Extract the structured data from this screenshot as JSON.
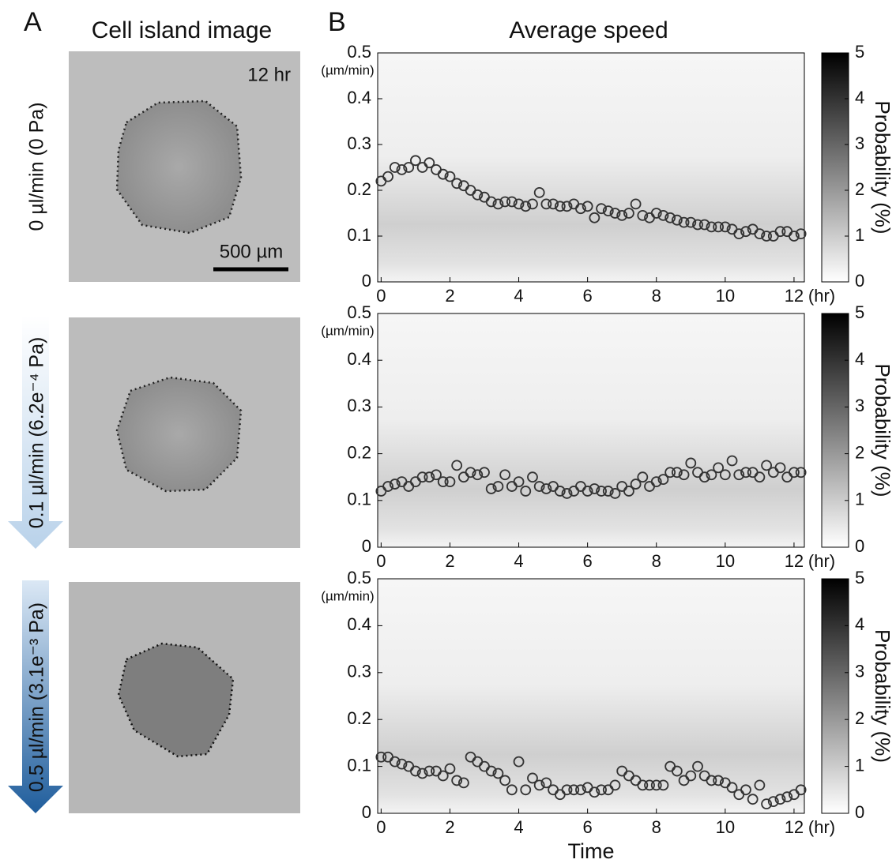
{
  "labels": {
    "panel_a": "A",
    "panel_a_title": "Cell island image",
    "panel_b": "B",
    "panel_b_title": "Average speed",
    "time_stamp": "12 hr",
    "scale_bar": "500 µm",
    "rows": [
      "0 µl/min (0 Pa)",
      "0.1 µl/min (6.2e⁻⁴ Pa)",
      "0.5 µl/min (3.1e⁻³ Pa)"
    ]
  },
  "chart_data": [
    {
      "type": "scatter",
      "y_unit": "(µm/min)",
      "x_unit": "(hr)",
      "x": [
        0,
        0.2,
        0.4,
        0.6,
        0.8,
        1,
        1.2,
        1.4,
        1.6,
        1.8,
        2,
        2.2,
        2.4,
        2.6,
        2.8,
        3,
        3.2,
        3.4,
        3.6,
        3.8,
        4,
        4.2,
        4.4,
        4.6,
        4.8,
        5,
        5.2,
        5.4,
        5.6,
        5.8,
        6,
        6.2,
        6.4,
        6.6,
        6.8,
        7,
        7.2,
        7.4,
        7.6,
        7.8,
        8,
        8.2,
        8.4,
        8.6,
        8.8,
        9,
        9.2,
        9.4,
        9.6,
        9.8,
        10,
        10.2,
        10.4,
        10.6,
        10.8,
        11,
        11.2,
        11.4,
        11.6,
        11.8,
        12,
        12.2
      ],
      "values": [
        0.22,
        0.23,
        0.25,
        0.245,
        0.25,
        0.265,
        0.25,
        0.26,
        0.245,
        0.235,
        0.23,
        0.215,
        0.21,
        0.2,
        0.19,
        0.185,
        0.175,
        0.17,
        0.175,
        0.175,
        0.17,
        0.165,
        0.17,
        0.195,
        0.17,
        0.17,
        0.165,
        0.165,
        0.17,
        0.16,
        0.165,
        0.14,
        0.16,
        0.155,
        0.15,
        0.145,
        0.15,
        0.17,
        0.145,
        0.14,
        0.15,
        0.145,
        0.14,
        0.135,
        0.13,
        0.13,
        0.125,
        0.125,
        0.12,
        0.12,
        0.12,
        0.115,
        0.105,
        0.11,
        0.115,
        0.105,
        0.1,
        0.1,
        0.11,
        0.11,
        0.1,
        0.105
      ],
      "xlim": [
        -0.1,
        12.3
      ],
      "xticks": [
        0,
        2,
        4,
        6,
        8,
        10,
        12
      ],
      "ylim": [
        0,
        0.5
      ],
      "yticks": [
        0,
        0.1,
        0.2,
        0.3,
        0.4,
        0.5
      ],
      "colorbar": {
        "label": "Probability (%)",
        "lim": [
          0,
          5
        ],
        "ticks": [
          0,
          1,
          2,
          3,
          4,
          5
        ]
      }
    },
    {
      "type": "scatter",
      "y_unit": "(µm/min)",
      "x_unit": "(hr)",
      "x": [
        0,
        0.2,
        0.4,
        0.6,
        0.8,
        1,
        1.2,
        1.4,
        1.6,
        1.8,
        2,
        2.2,
        2.4,
        2.6,
        2.8,
        3,
        3.2,
        3.4,
        3.6,
        3.8,
        4,
        4.2,
        4.4,
        4.6,
        4.8,
        5,
        5.2,
        5.4,
        5.6,
        5.8,
        6,
        6.2,
        6.4,
        6.6,
        6.8,
        7,
        7.2,
        7.4,
        7.6,
        7.8,
        8,
        8.2,
        8.4,
        8.6,
        8.8,
        9,
        9.2,
        9.4,
        9.6,
        9.8,
        10,
        10.2,
        10.4,
        10.6,
        10.8,
        11,
        11.2,
        11.4,
        11.6,
        11.8,
        12,
        12.2
      ],
      "values": [
        0.12,
        0.13,
        0.135,
        0.14,
        0.13,
        0.14,
        0.15,
        0.15,
        0.155,
        0.14,
        0.14,
        0.175,
        0.15,
        0.16,
        0.155,
        0.16,
        0.125,
        0.13,
        0.155,
        0.13,
        0.14,
        0.12,
        0.15,
        0.13,
        0.125,
        0.13,
        0.12,
        0.115,
        0.12,
        0.13,
        0.12,
        0.125,
        0.12,
        0.12,
        0.115,
        0.13,
        0.12,
        0.135,
        0.15,
        0.13,
        0.14,
        0.145,
        0.16,
        0.16,
        0.155,
        0.18,
        0.16,
        0.15,
        0.155,
        0.17,
        0.155,
        0.185,
        0.155,
        0.16,
        0.16,
        0.15,
        0.175,
        0.16,
        0.17,
        0.15,
        0.16,
        0.16
      ],
      "xlim": [
        -0.1,
        12.3
      ],
      "xticks": [
        0,
        2,
        4,
        6,
        8,
        10,
        12
      ],
      "ylim": [
        0,
        0.5
      ],
      "yticks": [
        0,
        0.1,
        0.2,
        0.3,
        0.4,
        0.5
      ],
      "colorbar": {
        "label": "Probability (%)",
        "lim": [
          0,
          5
        ],
        "ticks": [
          0,
          1,
          2,
          3,
          4,
          5
        ]
      }
    },
    {
      "type": "scatter",
      "y_unit": "(µm/min)",
      "x_unit": "(hr)",
      "x_label": "Time",
      "x": [
        0,
        0.2,
        0.4,
        0.6,
        0.8,
        1,
        1.2,
        1.4,
        1.6,
        1.8,
        2,
        2.2,
        2.4,
        2.6,
        2.8,
        3,
        3.2,
        3.4,
        3.6,
        3.8,
        4,
        4.2,
        4.4,
        4.6,
        4.8,
        5,
        5.2,
        5.4,
        5.6,
        5.8,
        6,
        6.2,
        6.4,
        6.6,
        6.8,
        7,
        7.2,
        7.4,
        7.6,
        7.8,
        8,
        8.2,
        8.4,
        8.6,
        8.8,
        9,
        9.2,
        9.4,
        9.6,
        9.8,
        10,
        10.2,
        10.4,
        10.6,
        10.8,
        11,
        11.2,
        11.4,
        11.6,
        11.8,
        12,
        12.2
      ],
      "values": [
        0.12,
        0.12,
        0.11,
        0.105,
        0.1,
        0.09,
        0.085,
        0.09,
        0.09,
        0.08,
        0.095,
        0.07,
        0.065,
        0.12,
        0.11,
        0.1,
        0.09,
        0.085,
        0.07,
        0.05,
        0.11,
        0.05,
        0.075,
        0.06,
        0.065,
        0.05,
        0.04,
        0.05,
        0.05,
        0.05,
        0.055,
        0.045,
        0.05,
        0.05,
        0.06,
        0.09,
        0.08,
        0.07,
        0.06,
        0.06,
        0.06,
        0.06,
        0.1,
        0.09,
        0.07,
        0.08,
        0.1,
        0.08,
        0.07,
        0.07,
        0.065,
        0.055,
        0.04,
        0.05,
        0.03,
        0.06,
        0.02,
        0.025,
        0.03,
        0.035,
        0.04,
        0.05
      ],
      "xlim": [
        -0.1,
        12.3
      ],
      "xticks": [
        0,
        2,
        4,
        6,
        8,
        10,
        12
      ],
      "ylim": [
        0,
        0.5
      ],
      "yticks": [
        0,
        0.1,
        0.2,
        0.3,
        0.4,
        0.5
      ],
      "colorbar": {
        "label": "Probability (%)",
        "lim": [
          0,
          5
        ],
        "ticks": [
          0,
          1,
          2,
          3,
          4,
          5
        ]
      }
    }
  ]
}
